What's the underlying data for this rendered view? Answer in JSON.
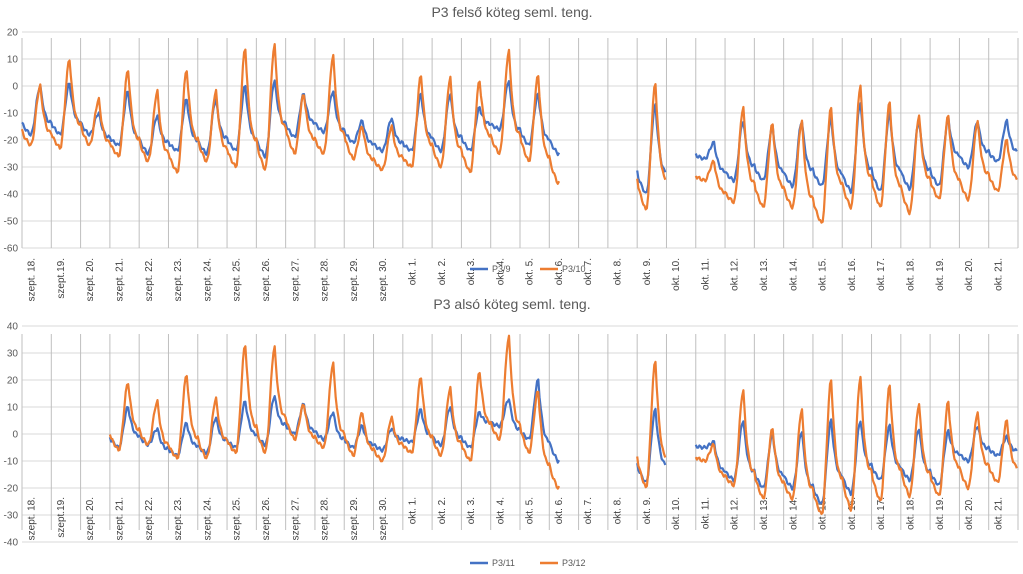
{
  "chart_data": [
    {
      "type": "line",
      "title": "P3 felső köteg seml. teng.",
      "xlabel": "",
      "ylabel": "",
      "ylim": [
        -60,
        20
      ],
      "yticks": [
        20,
        10,
        0,
        -10,
        -20,
        -30,
        -40,
        -50,
        -60
      ],
      "grid": "horizontal",
      "legend": "bottom-center",
      "categories": [
        "szept. 18.",
        "szept.19.",
        "szept. 20.",
        "szept. 21.",
        "szept. 22.",
        "szept. 23.",
        "szept. 24.",
        "szept. 25.",
        "szept. 26.",
        "szept. 27.",
        "szept. 28.",
        "szept. 29.",
        "szept. 30.",
        "okt. 1.",
        "okt. 2.",
        "okt. 3.",
        "okt. 4.",
        "okt. 5.",
        "okt. 6.",
        "okt. 7.",
        "okt. 8.",
        "okt. 9.",
        "okt. 10.",
        "okt. 11.",
        "okt. 12.",
        "okt. 13.",
        "okt. 14.",
        "okt. 15.",
        "okt. 16.",
        "okt. 17.",
        "okt. 18.",
        "okt. 19.",
        "okt. 20.",
        "okt. 21."
      ],
      "series": [
        {
          "name": "P3/9",
          "color": "#4472c4",
          "daily_min": [
            -18,
            -18,
            -18,
            -22,
            -25,
            -24,
            -25,
            -24,
            -26,
            -19,
            -17,
            -21,
            -24,
            -24,
            -24,
            -24,
            -16,
            -22,
            -25,
            null,
            null,
            -40,
            null,
            -27,
            -35,
            -35,
            -37,
            -37,
            -39,
            -39,
            -38,
            -37,
            -30,
            -28
          ],
          "daily_max": [
            0,
            1,
            -10,
            -2,
            -11,
            -5,
            -5,
            0,
            2,
            -3,
            -2,
            -13,
            -12,
            -3,
            -3,
            -8,
            2,
            -3,
            null,
            null,
            null,
            -7,
            null,
            -21,
            -13,
            -15,
            -13,
            -12,
            -6,
            -10,
            -13,
            -12,
            -13,
            -13
          ],
          "present": [
            1,
            1,
            1,
            1,
            1,
            1,
            1,
            1,
            1,
            1,
            1,
            1,
            1,
            1,
            1,
            1,
            1,
            1,
            1,
            0,
            0,
            1,
            0,
            1,
            1,
            1,
            1,
            1,
            1,
            1,
            1,
            1,
            1,
            1
          ]
        },
        {
          "name": "P3/10",
          "color": "#ed7d31",
          "daily_min": [
            -22,
            -23,
            -22,
            -26,
            -28,
            -32,
            -28,
            -30,
            -31,
            -25,
            -25,
            -27,
            -31,
            -30,
            -30,
            -32,
            -25,
            -28,
            -36,
            null,
            null,
            -46,
            null,
            -35,
            -43,
            -45,
            -45,
            -51,
            -45,
            -45,
            -47,
            -42,
            -42,
            -39
          ],
          "daily_max": [
            0,
            10,
            -5,
            6,
            -2,
            6,
            -2,
            14,
            15,
            -3,
            11,
            -15,
            -15,
            4,
            3,
            2,
            13,
            4,
            null,
            null,
            null,
            1,
            null,
            -28,
            -8,
            -14,
            -13,
            -8,
            0,
            -6,
            -11,
            -11,
            -13,
            -20
          ],
          "present": [
            1,
            1,
            1,
            1,
            1,
            1,
            1,
            1,
            1,
            1,
            1,
            1,
            1,
            1,
            1,
            1,
            1,
            1,
            1,
            0,
            0,
            1,
            0,
            1,
            1,
            1,
            1,
            1,
            1,
            1,
            1,
            1,
            1,
            1
          ]
        }
      ]
    },
    {
      "type": "line",
      "title": "P3 alsó köteg seml. teng.",
      "xlabel": "",
      "ylabel": "",
      "ylim": [
        -40,
        40
      ],
      "yticks": [
        40,
        30,
        20,
        10,
        0,
        -10,
        -20,
        -30,
        -40
      ],
      "grid": "horizontal",
      "legend": "bottom-center",
      "categories": [
        "szept. 18.",
        "szept.19.",
        "szept. 20.",
        "szept. 21.",
        "szept. 22.",
        "szept. 23.",
        "szept. 24.",
        "szept. 25.",
        "szept. 26.",
        "szept. 27.",
        "szept. 28.",
        "szept. 29.",
        "szept. 30.",
        "okt. 1.",
        "okt. 2.",
        "okt. 3.",
        "okt. 4.",
        "okt. 5.",
        "okt. 6.",
        "okt. 7.",
        "okt. 8.",
        "okt. 9.",
        "okt. 10.",
        "okt. 11.",
        "okt. 12.",
        "okt. 13.",
        "okt. 14.",
        "okt. 15.",
        "okt. 16.",
        "okt. 17.",
        "okt. 18.",
        "okt. 19.",
        "okt. 20.",
        "okt. 21."
      ],
      "series": [
        {
          "name": "P3/11",
          "color": "#4472c4",
          "daily_min": [
            null,
            null,
            null,
            -5,
            -4,
            -8,
            -7,
            -5,
            -4,
            0,
            -2,
            -5,
            -6,
            -3,
            -4,
            -5,
            3,
            -2,
            -10,
            null,
            null,
            -18,
            null,
            -5,
            -17,
            -20,
            -20,
            -26,
            -22,
            -17,
            -17,
            -19,
            -10,
            -8
          ],
          "daily_max": [
            null,
            null,
            null,
            10,
            2,
            4,
            6,
            12,
            14,
            11,
            8,
            3,
            2,
            9,
            10,
            8,
            13,
            20,
            null,
            null,
            null,
            9,
            null,
            -3,
            5,
            0,
            1,
            5,
            5,
            3,
            2,
            1,
            3,
            -1
          ],
          "present": [
            0,
            0,
            0,
            1,
            1,
            1,
            1,
            1,
            1,
            1,
            1,
            1,
            1,
            1,
            1,
            1,
            1,
            1,
            1,
            0,
            0,
            1,
            0,
            1,
            1,
            1,
            1,
            1,
            1,
            1,
            1,
            1,
            1,
            1
          ]
        },
        {
          "name": "P3/12",
          "color": "#ed7d31",
          "daily_min": [
            null,
            null,
            null,
            -6,
            -4,
            -9,
            -9,
            -7,
            -7,
            -2,
            -5,
            -8,
            -10,
            -7,
            -8,
            -10,
            -2,
            -7,
            -20,
            null,
            null,
            -20,
            null,
            -10,
            -19,
            -24,
            -24,
            -30,
            -28,
            -25,
            -23,
            -23,
            -20,
            -18
          ],
          "daily_max": [
            null,
            null,
            null,
            19,
            12,
            22,
            13,
            33,
            32,
            11,
            26,
            8,
            6,
            21,
            17,
            23,
            36,
            16,
            null,
            null,
            null,
            27,
            null,
            -4,
            16,
            2,
            9,
            20,
            21,
            18,
            11,
            12,
            8,
            5
          ],
          "present": [
            0,
            0,
            0,
            1,
            1,
            1,
            1,
            1,
            1,
            1,
            1,
            1,
            1,
            1,
            1,
            1,
            1,
            1,
            1,
            0,
            0,
            1,
            0,
            1,
            1,
            1,
            1,
            1,
            1,
            1,
            1,
            1,
            1,
            1
          ]
        }
      ]
    }
  ]
}
